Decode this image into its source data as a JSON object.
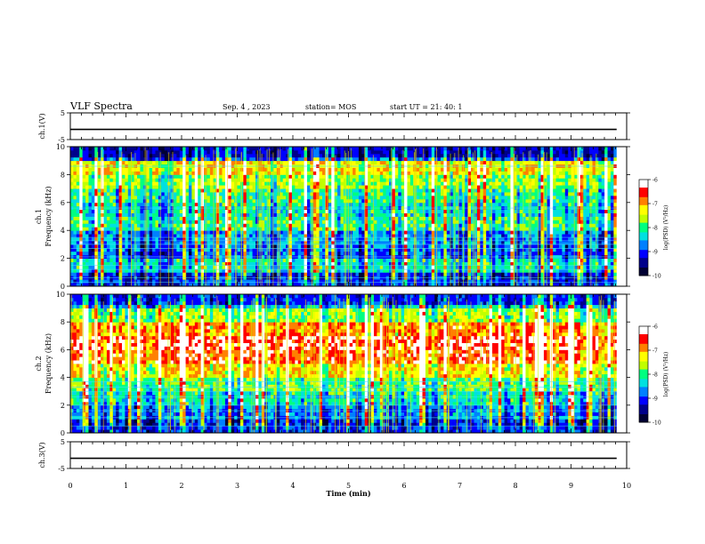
{
  "header": {
    "title": "VLF Spectra",
    "date": "Sep. 4 , 2023",
    "station": "station= MOS",
    "start": "start  UT  =   21: 40: 1"
  },
  "colors": {
    "background": "#ffffff",
    "axis": "#000000",
    "spectrogram_scale": [
      "#000033",
      "#00008b",
      "#0000ff",
      "#0080ff",
      "#00e0e0",
      "#00ff80",
      "#c0ff00",
      "#ffff00",
      "#ff8000",
      "#ff0000",
      "#ffffff"
    ]
  },
  "chart_data": [
    {
      "type": "line",
      "name": "ch1-voltage",
      "ylabel": "ch.1(V)",
      "ylim": [
        -5,
        5
      ],
      "yticks": [
        "5",
        "-5"
      ],
      "x": [
        0,
        9.82
      ],
      "values": [
        -1.2,
        -1.2
      ]
    },
    {
      "type": "heatmap",
      "name": "ch1-spectrogram",
      "ylabel": "ch.1\nFrequency (kHz)",
      "ylim": [
        0,
        10
      ],
      "yticks": [
        "0",
        "2",
        "4",
        "6",
        "8",
        "10"
      ],
      "xlim": [
        0,
        10
      ],
      "data_extent_x": [
        0,
        9.82
      ],
      "colorbar": {
        "label": "log(PSD) (V²/Hz)",
        "range": [
          -10,
          -6
        ],
        "ticks": [
          "-6",
          "-7",
          "-8",
          "-9",
          "-10"
        ]
      },
      "band_levels_by_khz": [
        0.25,
        0.45,
        0.3,
        0.35,
        0.5,
        0.45,
        0.5,
        0.6,
        0.7,
        0.3
      ],
      "horizontal_line_freqs_khz": [
        0.3,
        0.6,
        1.2,
        1.5,
        2.1,
        2.7,
        3.0,
        3.3,
        3.5,
        5.6,
        8.6
      ]
    },
    {
      "type": "heatmap",
      "name": "ch2-spectrogram",
      "ylabel": "ch.2\nFrequency (kHz)",
      "ylim": [
        0,
        10
      ],
      "yticks": [
        "0",
        "2",
        "4",
        "6",
        "8",
        "10"
      ],
      "xlim": [
        0,
        10
      ],
      "data_extent_x": [
        0,
        9.82
      ],
      "colorbar": {
        "label": "log(PSD) (V²/Hz)",
        "range": [
          -10,
          -6
        ],
        "ticks": [
          "-6",
          "-7",
          "-8",
          "-9",
          "-10"
        ]
      },
      "band_levels_by_khz": [
        0.25,
        0.35,
        0.45,
        0.55,
        0.7,
        0.85,
        0.9,
        0.8,
        0.6,
        0.4
      ],
      "horizontal_line_freqs_khz": [
        0.5,
        1.1,
        1.6,
        2.0,
        2.6,
        3.0,
        3.3,
        3.7
      ]
    },
    {
      "type": "line",
      "name": "ch3-voltage",
      "ylabel": "ch.3(V)",
      "ylim": [
        -5,
        5
      ],
      "yticks": [
        "5",
        "-5"
      ],
      "xlabel": "Time  (min)",
      "xlim": [
        0,
        10
      ],
      "xticks": [
        "0",
        "1",
        "2",
        "3",
        "4",
        "5",
        "6",
        "7",
        "8",
        "9",
        "10"
      ],
      "x": [
        0,
        9.82
      ],
      "values": [
        -1.2,
        -1.2
      ]
    }
  ]
}
